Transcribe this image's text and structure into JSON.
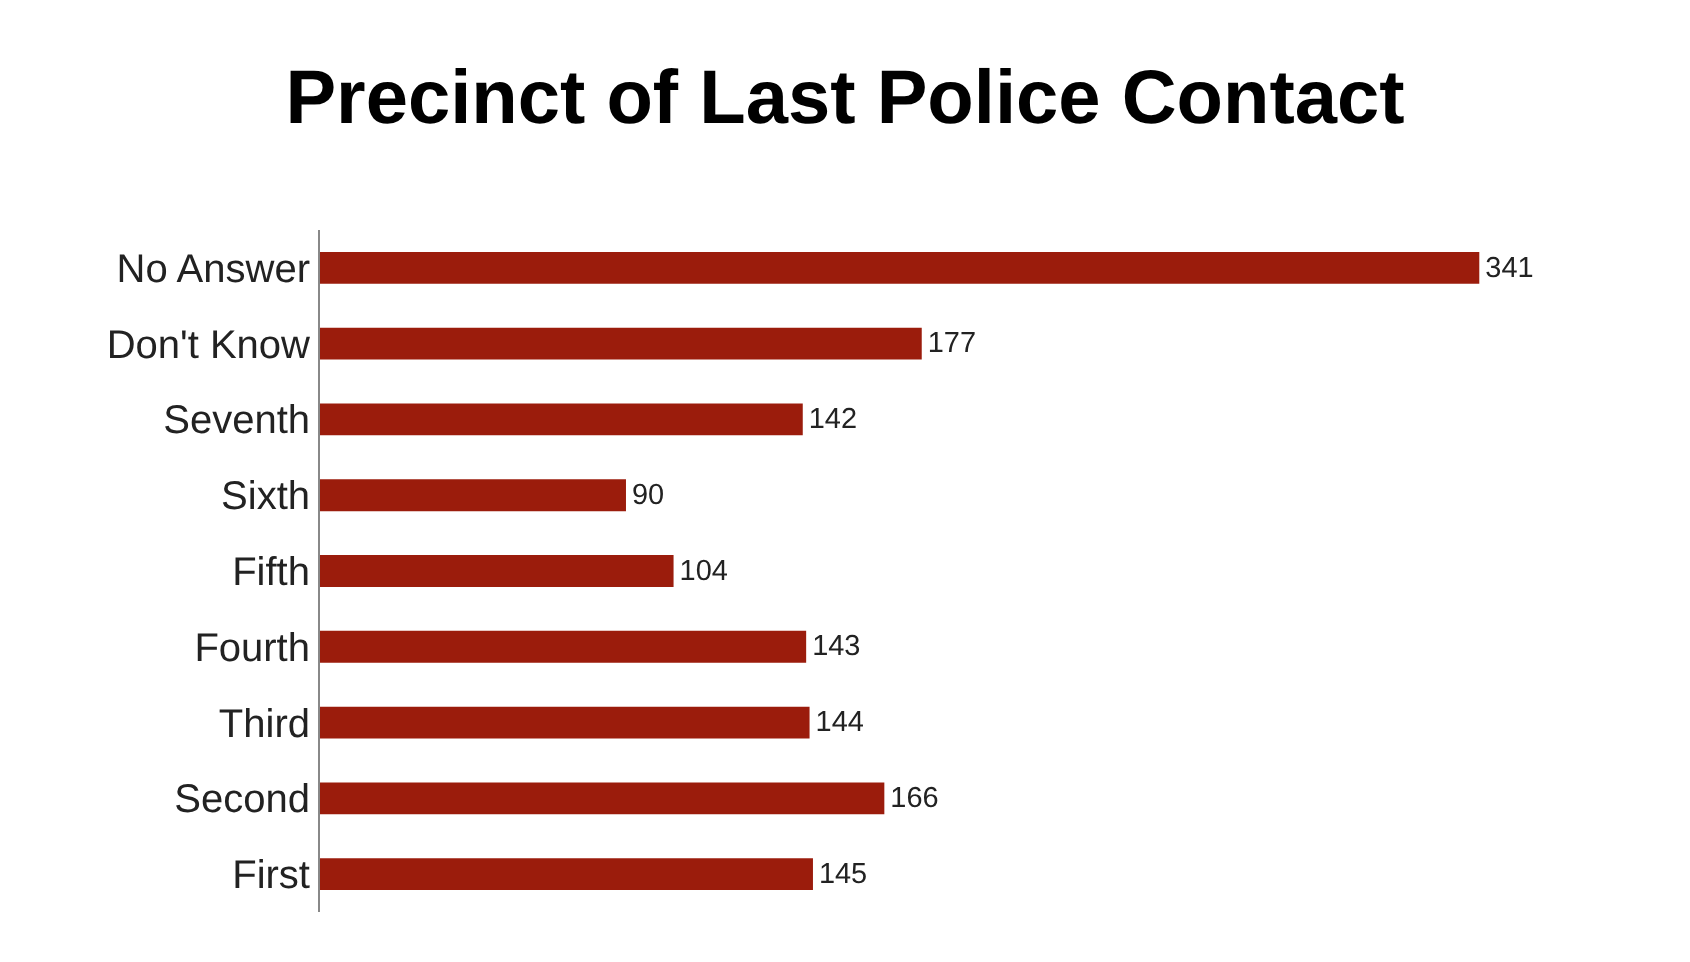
{
  "chart_data": {
    "type": "bar",
    "orientation": "horizontal",
    "title": "Precinct of Last Police Contact",
    "categories": [
      "No Answer",
      "Don't Know",
      "Seventh",
      "Sixth",
      "Fifth",
      "Fourth",
      "Third",
      "Second",
      "First"
    ],
    "values": [
      341,
      177,
      142,
      90,
      104,
      143,
      144,
      166,
      145
    ],
    "color": "#9b1c0c",
    "data_labels": true
  }
}
